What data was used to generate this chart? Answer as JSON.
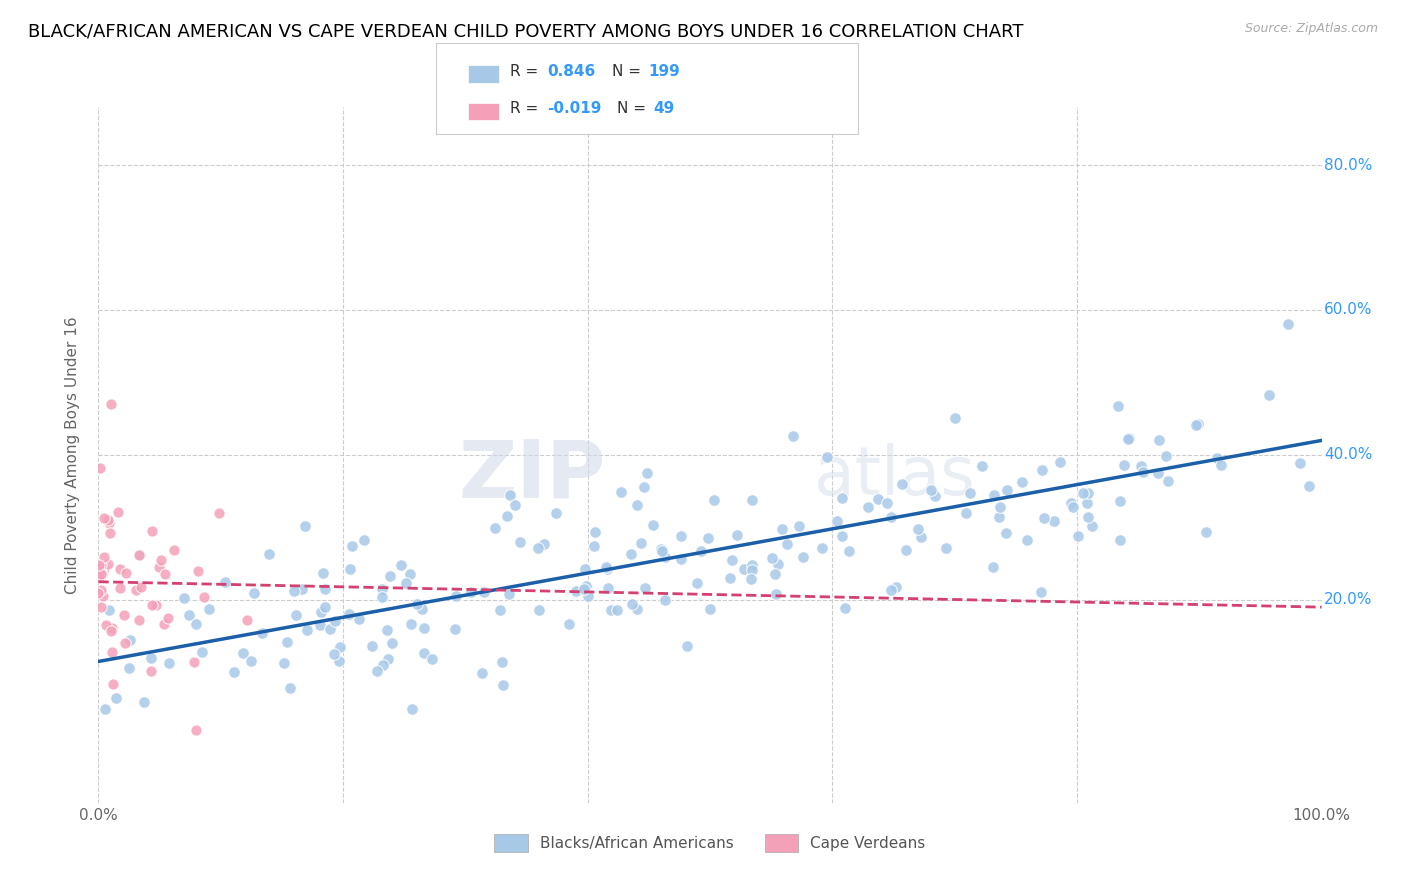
{
  "title": "BLACK/AFRICAN AMERICAN VS CAPE VERDEAN CHILD POVERTY AMONG BOYS UNDER 16 CORRELATION CHART",
  "source": "Source: ZipAtlas.com",
  "ylabel": "Child Poverty Among Boys Under 16",
  "xlim": [
    0,
    1
  ],
  "ylim": [
    -0.08,
    0.88
  ],
  "xticks": [
    0.0,
    0.2,
    0.4,
    0.6,
    0.8,
    1.0
  ],
  "xtick_labels": [
    "0.0%",
    "",
    "",
    "",
    "",
    "100.0%"
  ],
  "yticks": [
    0.2,
    0.4,
    0.6,
    0.8
  ],
  "ytick_labels": [
    "20.0%",
    "40.0%",
    "60.0%",
    "80.0%"
  ],
  "blue_color": "#a8c8e8",
  "blue_line_color": "#1a5fa8",
  "pink_color": "#f4a0b8",
  "pink_line_color": "#d44070",
  "blue_R": 0.846,
  "blue_N": 199,
  "pink_R": -0.019,
  "pink_N": 49,
  "legend_label_blue": "Blacks/African Americans",
  "legend_label_pink": "Cape Verdeans",
  "watermark": "ZIPatlas",
  "background_color": "#ffffff",
  "grid_color": "#cccccc",
  "title_fontsize": 13,
  "axis_fontsize": 11,
  "tick_fontsize": 11,
  "blue_line_intercept": 0.115,
  "blue_line_slope": 0.305,
  "pink_line_intercept": 0.225,
  "pink_line_slope": -0.035
}
